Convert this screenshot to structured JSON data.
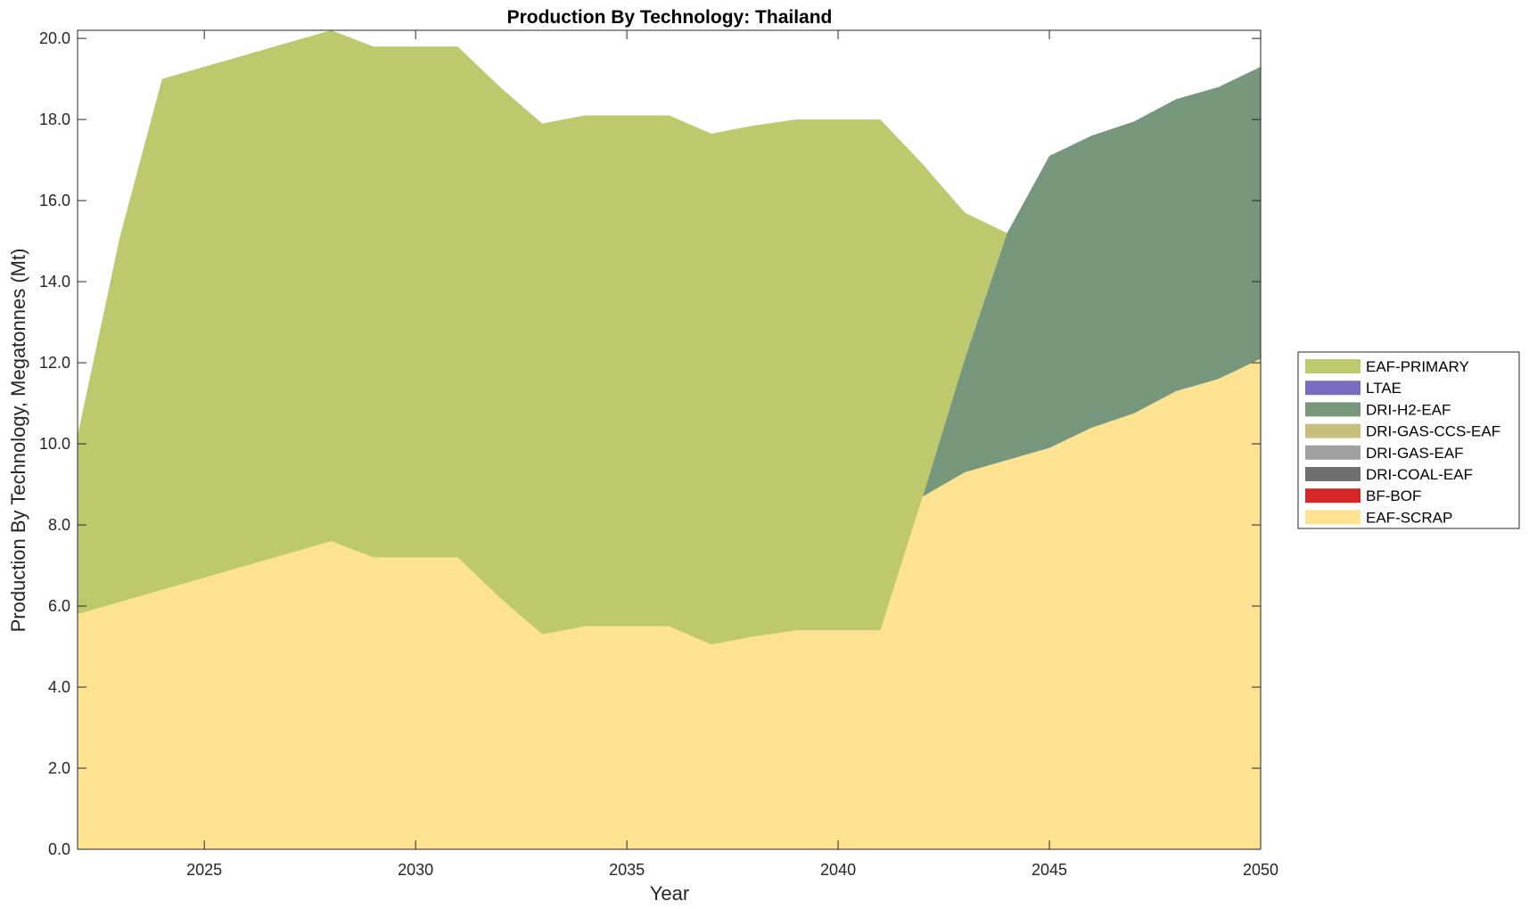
{
  "chart_data": {
    "type": "area",
    "stacked": true,
    "title": "Production By Technology: Thailand",
    "xlabel": "Year",
    "ylabel": "Production By Technology, Megatonnes (Mt)",
    "xlim": [
      2022,
      2050
    ],
    "ylim": [
      0,
      20.2
    ],
    "xticks": [
      2025,
      2030,
      2035,
      2040,
      2045,
      2050
    ],
    "yticks": [
      0,
      2,
      4,
      6,
      8,
      10,
      12,
      14,
      16,
      18,
      20
    ],
    "ytick_labels": [
      "0.0",
      "2.0",
      "4.0",
      "6.0",
      "8.0",
      "10.0",
      "12.0",
      "14.0",
      "16.0",
      "18.0",
      "20.0"
    ],
    "grid": false,
    "legend_position": "right",
    "x": [
      2022,
      2023,
      2024,
      2025,
      2026,
      2027,
      2028,
      2029,
      2030,
      2031,
      2032,
      2033,
      2034,
      2035,
      2036,
      2037,
      2038,
      2039,
      2040,
      2041,
      2042,
      2043,
      2044,
      2045,
      2046,
      2047,
      2048,
      2049,
      2050
    ],
    "series": [
      {
        "name": "EAF-SCRAP",
        "color": "#fde291",
        "values": [
          5.8,
          6.1,
          6.4,
          6.7,
          7.0,
          7.3,
          7.6,
          7.2,
          7.2,
          7.2,
          6.2,
          5.3,
          5.5,
          5.5,
          5.5,
          5.05,
          5.25,
          5.4,
          5.4,
          5.4,
          8.7,
          9.3,
          9.6,
          9.9,
          10.4,
          10.75,
          11.3,
          11.6,
          12.1
        ]
      },
      {
        "name": "BF-BOF",
        "color": "#d62728",
        "values": [
          0,
          0,
          0,
          0,
          0,
          0,
          0,
          0,
          0,
          0,
          0,
          0,
          0,
          0,
          0,
          0,
          0,
          0,
          0,
          0,
          0,
          0,
          0,
          0,
          0,
          0,
          0,
          0,
          0
        ]
      },
      {
        "name": "DRI-COAL-EAF",
        "color": "#6f6f6f",
        "values": [
          0,
          0,
          0,
          0,
          0,
          0,
          0,
          0,
          0,
          0,
          0,
          0,
          0,
          0,
          0,
          0,
          0,
          0,
          0,
          0,
          0,
          0,
          0,
          0,
          0,
          0,
          0,
          0,
          0
        ]
      },
      {
        "name": "DRI-GAS-EAF",
        "color": "#a0a0a0",
        "values": [
          0,
          0,
          0,
          0,
          0,
          0,
          0,
          0,
          0,
          0,
          0,
          0,
          0,
          0,
          0,
          0,
          0,
          0,
          0,
          0,
          0,
          0,
          0,
          0,
          0,
          0,
          0,
          0,
          0
        ]
      },
      {
        "name": "DRI-GAS-CCS-EAF",
        "color": "#c8bf7e",
        "values": [
          0,
          0,
          0,
          0,
          0,
          0,
          0,
          0,
          0,
          0,
          0,
          0,
          0,
          0,
          0,
          0,
          0,
          0,
          0,
          0,
          0,
          0,
          0,
          0,
          0,
          0,
          0,
          0,
          0
        ]
      },
      {
        "name": "DRI-H2-EAF",
        "color": "#77977c",
        "values": [
          0,
          0,
          0,
          0,
          0,
          0,
          0,
          0,
          0,
          0,
          0,
          0,
          0,
          0,
          0,
          0,
          0,
          0,
          0,
          0,
          0,
          2.8,
          5.6,
          7.2,
          7.2,
          7.2,
          7.2,
          7.2,
          7.2
        ]
      },
      {
        "name": "LTAE",
        "color": "#7b6cc1",
        "values": [
          0,
          0,
          0,
          0,
          0,
          0,
          0,
          0,
          0,
          0,
          0,
          0,
          0,
          0,
          0,
          0,
          0,
          0,
          0,
          0,
          0,
          0,
          0,
          0,
          0,
          0,
          0,
          0,
          0
        ]
      },
      {
        "name": "EAF-PRIMARY",
        "color": "#bec86c",
        "values": [
          4.4,
          9.0,
          12.6,
          12.6,
          12.6,
          12.6,
          12.6,
          12.6,
          12.6,
          12.6,
          12.6,
          12.6,
          12.6,
          12.6,
          12.6,
          12.6,
          12.6,
          12.6,
          12.6,
          12.6,
          8.2,
          3.6,
          0,
          0,
          0,
          0,
          0,
          0,
          0
        ]
      }
    ],
    "legend_order": [
      "EAF-PRIMARY",
      "LTAE",
      "DRI-H2-EAF",
      "DRI-GAS-CCS-EAF",
      "DRI-GAS-EAF",
      "DRI-COAL-EAF",
      "BF-BOF",
      "EAF-SCRAP"
    ]
  }
}
